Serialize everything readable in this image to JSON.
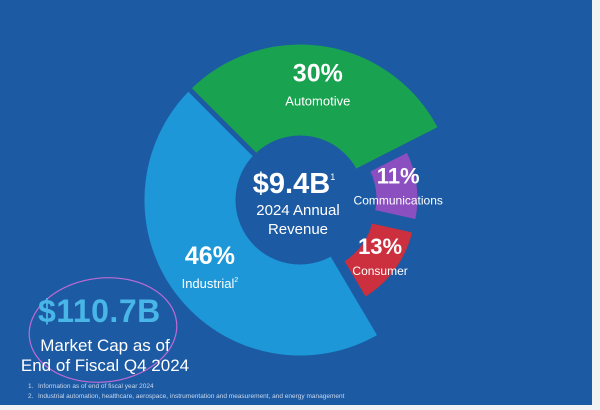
{
  "chart_data": {
    "type": "pie",
    "variant": "donut",
    "title": "",
    "categories": [
      "Automotive",
      "Communications",
      "Consumer",
      "Industrial"
    ],
    "values": [
      30,
      11,
      13,
      46
    ],
    "value_labels": [
      "30%",
      "11%",
      "13%",
      "46%"
    ],
    "category_labels": [
      "Automotive",
      "Communications",
      "Consumer",
      "Industrial"
    ],
    "label_superscripts": [
      "",
      "",
      "",
      "2"
    ],
    "exploded": [
      "Communications",
      "Consumer"
    ],
    "colors": [
      "#19a24f",
      "#8b4fbf",
      "#cc2f3d",
      "#1d97d7"
    ],
    "center": {
      "value": "$9.4B",
      "value_sup": "1",
      "label_line1": "2024 Annual",
      "label_line2": "Revenue"
    }
  },
  "colors": {
    "background": "#1c5ba3",
    "accent_blue": "#49b6e8",
    "annotation_circle": "#c06ad6"
  },
  "market_cap": {
    "value": "$110.7B",
    "label_line1": "Market Cap as of",
    "label_line2": "End of Fiscal Q4 2024"
  },
  "footnotes": [
    {
      "num": "1.",
      "text": "Information as of end of fiscal year 2024"
    },
    {
      "num": "2.",
      "text": "Industrial automation, healthcare, aerospace, instrumentation and measurement, and energy management"
    }
  ]
}
